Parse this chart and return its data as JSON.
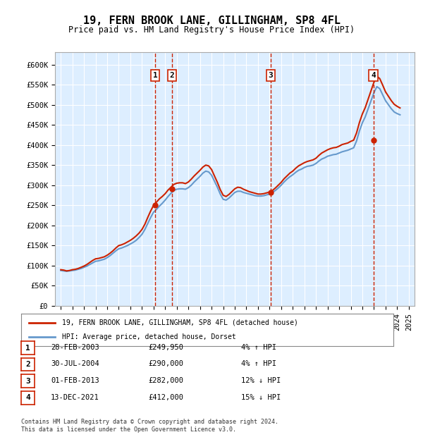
{
  "title": "19, FERN BROOK LANE, GILLINGHAM, SP8 4FL",
  "subtitle": "Price paid vs. HM Land Registry's House Price Index (HPI)",
  "hpi_label": "HPI: Average price, detached house, Dorset",
  "property_label": "19, FERN BROOK LANE, GILLINGHAM, SP8 4FL (detached house)",
  "footer": "Contains HM Land Registry data © Crown copyright and database right 2024.\nThis data is licensed under the Open Government Licence v3.0.",
  "ylim": [
    0,
    630000
  ],
  "yticks": [
    0,
    50000,
    100000,
    150000,
    200000,
    250000,
    300000,
    350000,
    400000,
    450000,
    500000,
    550000,
    600000
  ],
  "ytick_labels": [
    "£0",
    "£50K",
    "£100K",
    "£150K",
    "£200K",
    "£250K",
    "£300K",
    "£350K",
    "£400K",
    "£450K",
    "£500K",
    "£550K",
    "£600K"
  ],
  "hpi_color": "#6699cc",
  "property_color": "#cc2200",
  "dashed_color": "#cc2200",
  "bg_color": "#ddeeff",
  "transaction_color": "#cc2200",
  "transactions": [
    {
      "num": 1,
      "date": "28-FEB-2003",
      "price": 249950,
      "pct": "4%",
      "dir": "↑",
      "year": 2003.15
    },
    {
      "num": 2,
      "date": "30-JUL-2004",
      "price": 290000,
      "pct": "4%",
      "dir": "↑",
      "year": 2004.58
    },
    {
      "num": 3,
      "date": "01-FEB-2013",
      "price": 282000,
      "pct": "12%",
      "dir": "↓",
      "year": 2013.08
    },
    {
      "num": 4,
      "date": "13-DEC-2021",
      "price": 412000,
      "pct": "15%",
      "dir": "↓",
      "year": 2021.95
    }
  ],
  "hpi_data": {
    "years": [
      1995.0,
      1995.25,
      1995.5,
      1995.75,
      1996.0,
      1996.25,
      1996.5,
      1996.75,
      1997.0,
      1997.25,
      1997.5,
      1997.75,
      1998.0,
      1998.25,
      1998.5,
      1998.75,
      1999.0,
      1999.25,
      1999.5,
      1999.75,
      2000.0,
      2000.25,
      2000.5,
      2000.75,
      2001.0,
      2001.25,
      2001.5,
      2001.75,
      2002.0,
      2002.25,
      2002.5,
      2002.75,
      2003.0,
      2003.25,
      2003.5,
      2003.75,
      2004.0,
      2004.25,
      2004.5,
      2004.75,
      2005.0,
      2005.25,
      2005.5,
      2005.75,
      2006.0,
      2006.25,
      2006.5,
      2006.75,
      2007.0,
      2007.25,
      2007.5,
      2007.75,
      2008.0,
      2008.25,
      2008.5,
      2008.75,
      2009.0,
      2009.25,
      2009.5,
      2009.75,
      2010.0,
      2010.25,
      2010.5,
      2010.75,
      2011.0,
      2011.25,
      2011.5,
      2011.75,
      2012.0,
      2012.25,
      2012.5,
      2012.75,
      2013.0,
      2013.25,
      2013.5,
      2013.75,
      2014.0,
      2014.25,
      2014.5,
      2014.75,
      2015.0,
      2015.25,
      2015.5,
      2015.75,
      2016.0,
      2016.25,
      2016.5,
      2016.75,
      2017.0,
      2017.25,
      2017.5,
      2017.75,
      2018.0,
      2018.25,
      2018.5,
      2018.75,
      2019.0,
      2019.25,
      2019.5,
      2019.75,
      2020.0,
      2020.25,
      2020.5,
      2020.75,
      2021.0,
      2021.25,
      2021.5,
      2021.75,
      2022.0,
      2022.25,
      2022.5,
      2022.75,
      2023.0,
      2023.25,
      2023.5,
      2023.75,
      2024.0,
      2024.25
    ],
    "values": [
      88000,
      87000,
      86000,
      87000,
      88000,
      89000,
      91000,
      93000,
      96000,
      99000,
      103000,
      107000,
      111000,
      112000,
      114000,
      116000,
      120000,
      125000,
      131000,
      137000,
      142000,
      144000,
      147000,
      150000,
      154000,
      158000,
      163000,
      170000,
      178000,
      190000,
      205000,
      220000,
      233000,
      240000,
      248000,
      255000,
      263000,
      272000,
      280000,
      287000,
      290000,
      291000,
      291000,
      290000,
      294000,
      300000,
      308000,
      315000,
      322000,
      330000,
      335000,
      333000,
      325000,
      310000,
      295000,
      278000,
      265000,
      263000,
      268000,
      275000,
      282000,
      285000,
      285000,
      282000,
      280000,
      278000,
      276000,
      274000,
      273000,
      273000,
      274000,
      276000,
      278000,
      282000,
      287000,
      293000,
      300000,
      308000,
      315000,
      321000,
      326000,
      332000,
      337000,
      340000,
      344000,
      347000,
      348000,
      350000,
      354000,
      360000,
      365000,
      368000,
      372000,
      374000,
      376000,
      377000,
      380000,
      383000,
      385000,
      387000,
      390000,
      393000,
      410000,
      435000,
      455000,
      470000,
      490000,
      510000,
      530000,
      545000,
      540000,
      525000,
      510000,
      500000,
      490000,
      482000,
      478000,
      475000
    ]
  },
  "property_data": {
    "years": [
      1995.0,
      1995.25,
      1995.5,
      1995.75,
      1996.0,
      1996.25,
      1996.5,
      1996.75,
      1997.0,
      1997.25,
      1997.5,
      1997.75,
      1998.0,
      1998.25,
      1998.5,
      1998.75,
      1999.0,
      1999.25,
      1999.5,
      1999.75,
      2000.0,
      2000.25,
      2000.5,
      2000.75,
      2001.0,
      2001.25,
      2001.5,
      2001.75,
      2002.0,
      2002.25,
      2002.5,
      2002.75,
      2003.0,
      2003.25,
      2003.5,
      2003.75,
      2004.0,
      2004.25,
      2004.5,
      2004.75,
      2005.0,
      2005.25,
      2005.5,
      2005.75,
      2006.0,
      2006.25,
      2006.5,
      2006.75,
      2007.0,
      2007.25,
      2007.5,
      2007.75,
      2008.0,
      2008.25,
      2008.5,
      2008.75,
      2009.0,
      2009.25,
      2009.5,
      2009.75,
      2010.0,
      2010.25,
      2010.5,
      2010.75,
      2011.0,
      2011.25,
      2011.5,
      2011.75,
      2012.0,
      2012.25,
      2012.5,
      2012.75,
      2013.0,
      2013.25,
      2013.5,
      2013.75,
      2014.0,
      2014.25,
      2014.5,
      2014.75,
      2015.0,
      2015.25,
      2015.5,
      2015.75,
      2016.0,
      2016.25,
      2016.5,
      2016.75,
      2017.0,
      2017.25,
      2017.5,
      2017.75,
      2018.0,
      2018.25,
      2018.5,
      2018.75,
      2019.0,
      2019.25,
      2019.5,
      2019.75,
      2020.0,
      2020.25,
      2020.5,
      2020.75,
      2021.0,
      2021.25,
      2021.5,
      2021.75,
      2022.0,
      2022.25,
      2022.5,
      2022.75,
      2023.0,
      2023.25,
      2023.5,
      2023.75,
      2024.0,
      2024.25
    ],
    "values": [
      90000,
      89000,
      87000,
      88000,
      90000,
      91000,
      93000,
      96000,
      99000,
      103000,
      108000,
      113000,
      117000,
      118000,
      120000,
      122000,
      126000,
      131000,
      137000,
      144000,
      150000,
      152000,
      155000,
      159000,
      163000,
      168000,
      174000,
      181000,
      190000,
      203000,
      220000,
      236000,
      250000,
      258000,
      266000,
      272000,
      279000,
      288000,
      295000,
      302000,
      305000,
      306000,
      306000,
      304000,
      308000,
      315000,
      323000,
      330000,
      337000,
      345000,
      350000,
      348000,
      339000,
      323000,
      307000,
      289000,
      275000,
      272000,
      277000,
      284000,
      291000,
      295000,
      294000,
      290000,
      287000,
      284000,
      282000,
      280000,
      278000,
      278000,
      279000,
      281000,
      283000,
      287000,
      293000,
      300000,
      307000,
      316000,
      323000,
      330000,
      335000,
      342000,
      348000,
      352000,
      356000,
      359000,
      361000,
      363000,
      367000,
      374000,
      380000,
      384000,
      388000,
      391000,
      393000,
      394000,
      397000,
      401000,
      403000,
      405000,
      409000,
      412000,
      430000,
      456000,
      477000,
      493000,
      514000,
      535000,
      556000,
      571000,
      565000,
      549000,
      532000,
      521000,
      510000,
      501000,
      496000,
      492000
    ]
  }
}
